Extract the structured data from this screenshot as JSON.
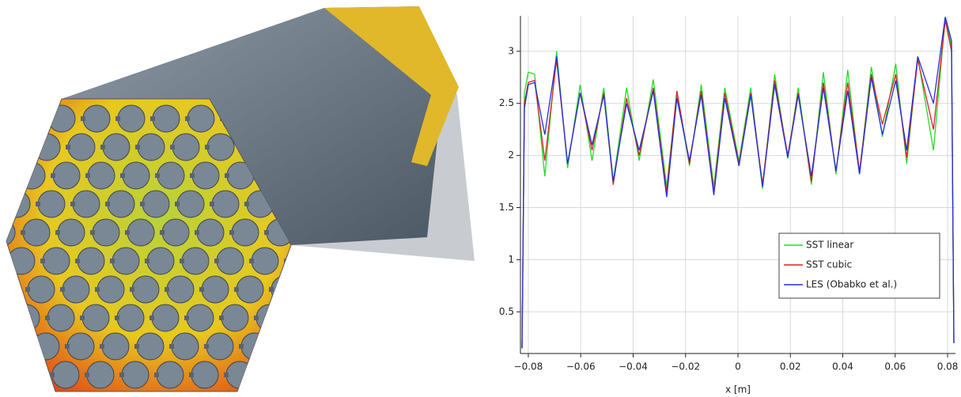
{
  "chart_data": {
    "type": "line",
    "xlabel": "x [m]",
    "x": [
      -0.0824,
      -0.0815,
      -0.08,
      -0.0776,
      -0.0737,
      -0.0692,
      -0.065,
      -0.0602,
      -0.0557,
      -0.0512,
      -0.0476,
      -0.0425,
      -0.0377,
      -0.0323,
      -0.0272,
      -0.0233,
      -0.0185,
      -0.014,
      -0.0092,
      -0.005,
      0.0004,
      0.0049,
      0.0094,
      0.014,
      0.019,
      0.023,
      0.028,
      0.0326,
      0.0374,
      0.0419,
      0.0464,
      0.0509,
      0.0551,
      0.0602,
      0.0644,
      0.0686,
      0.0746,
      0.0791,
      0.0815,
      0.0824
    ],
    "series": [
      {
        "name": "SST linear",
        "color": "#22dd22",
        "values": [
          0.15,
          2.6,
          2.8,
          2.78,
          1.8,
          3.0,
          1.88,
          2.68,
          1.95,
          2.65,
          1.75,
          2.65,
          1.95,
          2.73,
          1.7,
          2.6,
          1.9,
          2.68,
          1.7,
          2.65,
          1.95,
          2.65,
          1.68,
          2.78,
          1.97,
          2.65,
          1.72,
          2.8,
          1.82,
          2.82,
          1.83,
          2.85,
          2.18,
          2.88,
          1.92,
          2.95,
          2.05,
          3.32,
          3.05,
          0.2
        ]
      },
      {
        "name": "SST cubic",
        "color": "#e02020",
        "values": [
          0.15,
          2.5,
          2.7,
          2.72,
          1.95,
          2.92,
          1.92,
          2.6,
          2.05,
          2.6,
          1.72,
          2.55,
          2.0,
          2.65,
          1.65,
          2.62,
          1.92,
          2.62,
          1.65,
          2.6,
          1.92,
          2.6,
          1.72,
          2.72,
          2.0,
          2.6,
          1.75,
          2.7,
          1.85,
          2.7,
          1.85,
          2.78,
          2.3,
          2.78,
          1.98,
          2.92,
          2.25,
          3.3,
          3.0,
          0.2
        ]
      },
      {
        "name": "LES (Obabko et al.)",
        "color": "#2030e0",
        "values": [
          0.15,
          2.45,
          2.68,
          2.7,
          2.2,
          2.95,
          1.92,
          2.6,
          2.1,
          2.58,
          1.75,
          2.5,
          2.05,
          2.62,
          1.6,
          2.55,
          1.95,
          2.58,
          1.62,
          2.55,
          1.9,
          2.58,
          1.7,
          2.68,
          1.98,
          2.58,
          1.8,
          2.65,
          1.85,
          2.62,
          1.82,
          2.75,
          2.2,
          2.72,
          2.05,
          2.95,
          2.5,
          3.33,
          3.1,
          0.2
        ]
      }
    ],
    "xlim": [
      -0.083,
      0.083
    ],
    "xticks": [
      {
        "value": -0.08,
        "label": "−0.08"
      },
      {
        "value": -0.06,
        "label": "−0.06"
      },
      {
        "value": -0.04,
        "label": "−0.04"
      },
      {
        "value": -0.02,
        "label": "−0.02"
      },
      0,
      0.02,
      0.04,
      0.06,
      0.08
    ],
    "ylim": [
      0.1,
      3.34
    ],
    "yticks": [
      0.5,
      1,
      1.5,
      2,
      2.5,
      3
    ],
    "grid": true,
    "legend": "lower right"
  }
}
